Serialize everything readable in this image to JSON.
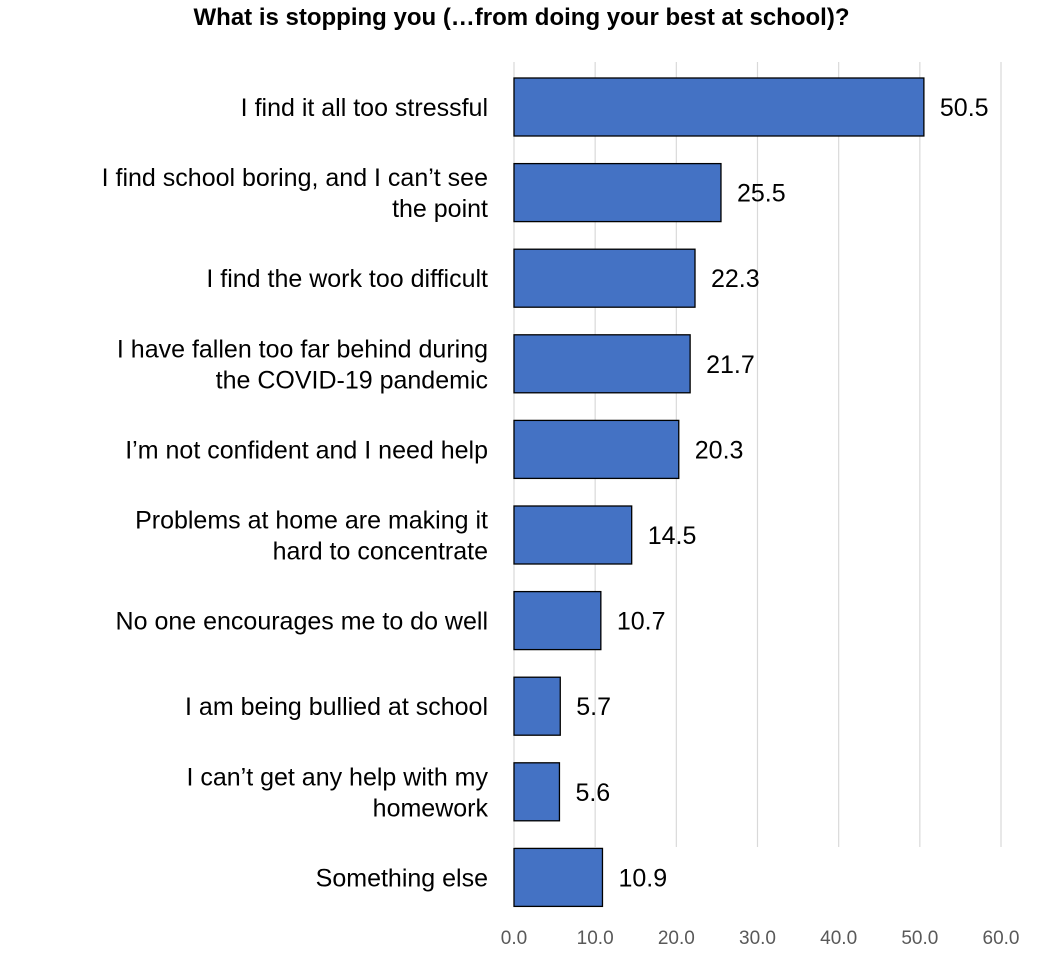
{
  "chart_data": {
    "type": "bar",
    "orientation": "horizontal",
    "title": "What is stopping you (…from doing your best at school)?",
    "xlabel": "",
    "ylabel": "",
    "xlim": [
      0,
      60
    ],
    "ticks": [
      "0.0",
      "10.0",
      "20.0",
      "30.0",
      "40.0",
      "50.0",
      "60.0"
    ],
    "tick_values": [
      0,
      10,
      20,
      30,
      40,
      50,
      60
    ],
    "grid": "vertical",
    "bar_color": "#4472C4",
    "categories": [
      [
        "I find it all too stressful"
      ],
      [
        "I find school boring, and I can’t see",
        "the point"
      ],
      [
        "I find the work too difficult"
      ],
      [
        "I have fallen too far behind during",
        "the COVID-19 pandemic"
      ],
      [
        "I’m not confident and I need help"
      ],
      [
        "Problems at home are making it",
        "hard to concentrate"
      ],
      [
        "No one encourages me to do well"
      ],
      [
        "I am being bullied at school"
      ],
      [
        "I can’t get any help with my",
        "homework"
      ],
      [
        "Something else"
      ]
    ],
    "values": [
      50.5,
      25.5,
      22.3,
      21.7,
      20.3,
      14.5,
      10.7,
      5.7,
      5.6,
      10.9
    ],
    "value_labels": [
      "50.5",
      "25.5",
      "22.3",
      "21.7",
      "20.3",
      "14.5",
      "10.7",
      "5.7",
      "5.6",
      "10.9"
    ]
  }
}
